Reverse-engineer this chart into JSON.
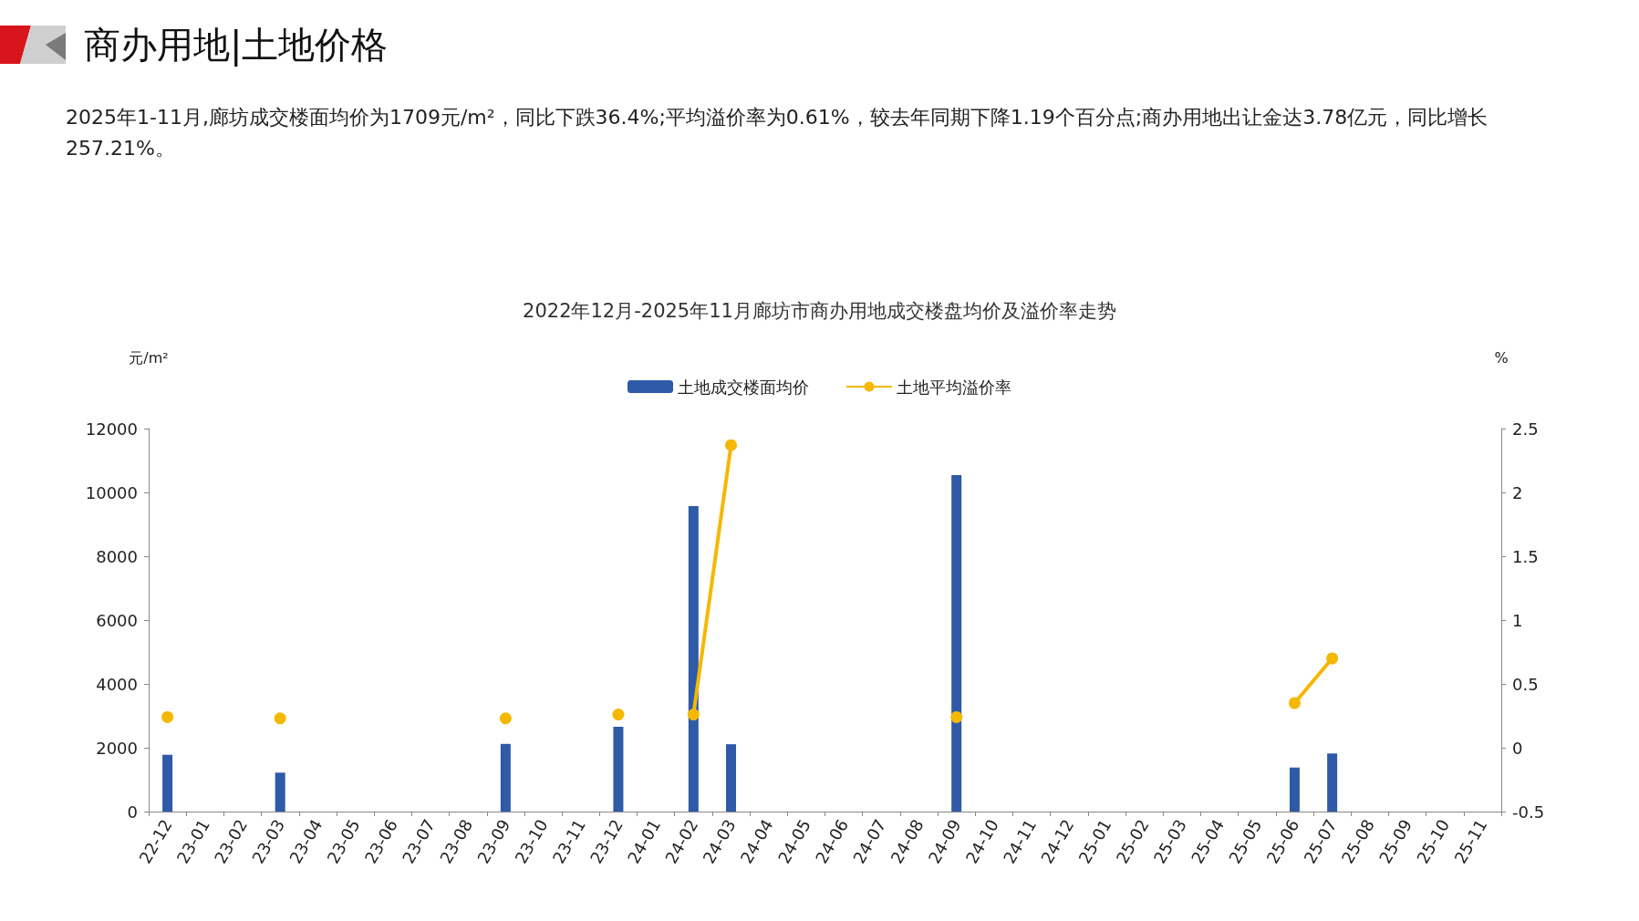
{
  "chart_data": {
    "type": "bar",
    "title": "2022年12月-2025年11月廊坊市商办用地成交楼盘均价及溢价率走势",
    "annotations": [
      "商办用地|土地价格",
      "2025年1-11月,廊坊成交楼面均价为1709元/m²，同比下跌36.4%;平均溢价率为0.61%，较去年同期下降1.19个百分点;商办用地出让金达3.78亿元，同比增长257.21%。"
    ],
    "ylabel": "元/m²",
    "y2label": "%",
    "categories": [
      "22-12",
      "23-01",
      "23-02",
      "23-03",
      "23-04",
      "23-05",
      "23-06",
      "23-07",
      "23-08",
      "23-09",
      "23-10",
      "23-11",
      "23-12",
      "24-01",
      "24-02",
      "24-03",
      "24-04",
      "24-05",
      "24-06",
      "24-07",
      "24-08",
      "24-09",
      "24-10",
      "24-11",
      "24-12",
      "25-01",
      "25-02",
      "25-03",
      "25-04",
      "25-05",
      "25-06",
      "25-07",
      "25-08",
      "25-09",
      "25-10",
      "25-11"
    ],
    "series": [
      {
        "name": "土地成交楼面均价",
        "color": "#2e5aa8",
        "values": [
          1780,
          null,
          null,
          1220,
          null,
          null,
          null,
          null,
          null,
          2120,
          null,
          null,
          2660,
          null,
          9570,
          2110,
          null,
          null,
          null,
          null,
          null,
          10540,
          null,
          null,
          null,
          null,
          null,
          null,
          null,
          null,
          1380,
          1820,
          null,
          null,
          null,
          null
        ]
      },
      {
        "name": "土地平均溢价率",
        "type": "line",
        "axis": "y2",
        "color": "#f5b800",
        "marker": "circle",
        "values": [
          0.24,
          null,
          null,
          0.23,
          null,
          null,
          null,
          null,
          null,
          0.23,
          null,
          null,
          0.26,
          null,
          0.26,
          2.37,
          null,
          null,
          null,
          null,
          null,
          0.24,
          null,
          null,
          null,
          null,
          null,
          null,
          null,
          null,
          0.35,
          0.7,
          null,
          null,
          null,
          null
        ]
      }
    ],
    "ylim": [
      0,
      12000
    ],
    "yticks": [
      0,
      2000,
      4000,
      6000,
      8000,
      10000,
      12000
    ],
    "y2lim": [
      -0.5,
      2.5
    ],
    "y2ticks": [
      -0.5,
      0,
      0.5,
      1,
      1.5,
      2,
      2.5
    ],
    "grid": false,
    "legend": "top"
  }
}
